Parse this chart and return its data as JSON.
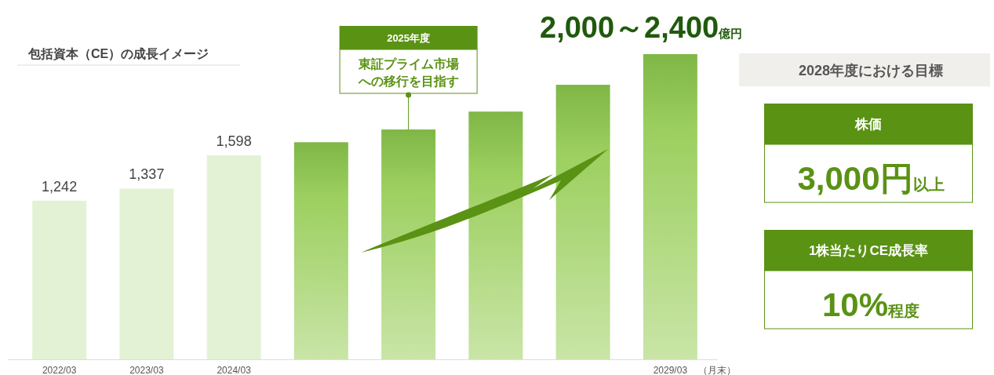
{
  "chart_data": [
    {
      "type": "bar",
      "title": "包括資本（CE）の成長イメージ",
      "categories": [
        "2022/03",
        "2023/03",
        "2024/03",
        null,
        null,
        null,
        null,
        "2029/03"
      ],
      "values": [
        1242,
        1337,
        1598,
        1700,
        1800,
        1940,
        2150,
        2390
      ],
      "value_labels": [
        "1,242",
        "1,337",
        "1,598",
        null,
        null,
        null,
        null,
        null
      ],
      "colors": [
        "#e3f2d5",
        "#e3f2d5",
        "#e3f2d5",
        "#9ccf5f",
        "#9ccf5f",
        "#9ccf5f",
        "#9ccf5f",
        "#9ccf5f"
      ],
      "annotations": [
        "2025年度",
        "東証プライム市場",
        "への移行を目指す",
        "2,000～2,400",
        "億円",
        "（月末）"
      ]
    },
    {
      "type": "other",
      "title": "2028年度における目標",
      "annotations": [
        "株価",
        "3,000円",
        "以上",
        "1株当たりCE成長率",
        "10%",
        "程度"
      ]
    }
  ]
}
